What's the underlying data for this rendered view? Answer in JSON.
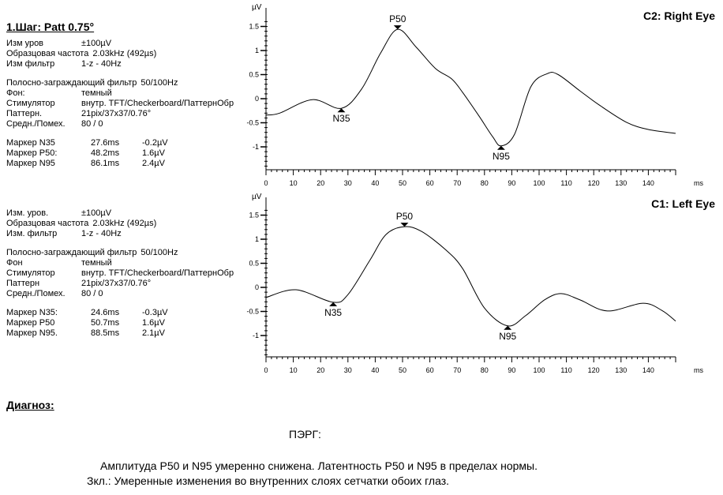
{
  "step_title": "1.Шаг: Patt 0.75°",
  "info_blocks": [
    {
      "params": [
        {
          "label": "Изм уров",
          "value": "±100µV"
        },
        {
          "label": "Образцовая частота",
          "value": "2.03kHz (492µs)"
        },
        {
          "label": "Изм фильтр",
          "value": "1-z - 40Hz"
        }
      ],
      "params2": [
        {
          "label": "Полосно-заграждающий фильтр",
          "value": "50/100Hz"
        },
        {
          "label": "Фон:",
          "value": "темный"
        },
        {
          "label": "Стимулятор",
          "value": "внутр. TFT/Checkerboard/ПаттернОбр"
        },
        {
          "label": "Паттерн.",
          "value": "21pix/37x37/0.76°"
        },
        {
          "label": "Средн./Помех.",
          "value": "80 / 0"
        }
      ],
      "markers": [
        {
          "label": "Маркер N35",
          "ms": "27.6ms",
          "uv": "-0.2µV"
        },
        {
          "label": "Маркер P50:",
          "ms": "48.2ms",
          "uv": "1.6µV"
        },
        {
          "label": "Маркер N95",
          "ms": "86.1ms",
          "uv": "2.4µV"
        }
      ]
    },
    {
      "params": [
        {
          "label": "Изм. уров.",
          "value": "±100µV"
        },
        {
          "label": "Образцовая частота",
          "value": "2.03kHz (492µs)"
        },
        {
          "label": "Изм. фильтр",
          "value": "1-z - 40Hz"
        }
      ],
      "params2": [
        {
          "label": "Полосно-заграждающий фильтр",
          "value": "50/100Hz"
        },
        {
          "label": "Фон",
          "value": "темный"
        },
        {
          "label": "Стимулятор",
          "value": "внутр. TFT/Checkerboard/ПаттернОбр"
        },
        {
          "label": "Паттерн",
          "value": "21pix/37x37/0.76°"
        },
        {
          "label": "Средн./Помех.",
          "value": "80 / 0"
        }
      ],
      "markers": [
        {
          "label": "Маркер N35:",
          "ms": "24.6ms",
          "uv": "-0.3µV"
        },
        {
          "label": "Маркер P50",
          "ms": "50.7ms",
          "uv": "1.6µV"
        },
        {
          "label": "Маркер N95.",
          "ms": "88.5ms",
          "uv": "2.1µV"
        }
      ]
    }
  ],
  "chart_data": [
    {
      "type": "line",
      "title": "C2: Right Eye",
      "xlabel": "ms",
      "ylabel": "µV",
      "xlim": [
        0,
        150
      ],
      "ylim": [
        -1.3,
        1.7
      ],
      "xticks": [
        "0",
        "10",
        "20",
        "30",
        "40",
        "50",
        "60",
        "70",
        "80",
        "90",
        "100",
        "110",
        "120",
        "130",
        "140"
      ],
      "yticks": [
        {
          "v": 1.5,
          "t": "1.5"
        },
        {
          "v": 1,
          "t": "1"
        },
        {
          "v": 0.5,
          "t": "0.5"
        },
        {
          "v": 0,
          "t": "0"
        },
        {
          "v": -0.5,
          "t": "-0.5"
        },
        {
          "v": -1,
          "t": "-1"
        }
      ],
      "series": [
        {
          "name": "Right Eye",
          "x": [
            0,
            5,
            17,
            27.6,
            35,
            42,
            48.2,
            55,
            62,
            68,
            72,
            78,
            83,
            86.1,
            91,
            97,
            103,
            107,
            115,
            122,
            132,
            140,
            150
          ],
          "y": [
            -0.34,
            -0.3,
            -0.02,
            -0.2,
            0.2,
            0.95,
            1.44,
            1.07,
            0.63,
            0.41,
            0.13,
            -0.36,
            -0.79,
            -0.98,
            -0.74,
            0.25,
            0.52,
            0.5,
            0.16,
            -0.13,
            -0.49,
            -0.64,
            -0.72
          ]
        }
      ],
      "markers": [
        {
          "name": "N35",
          "x": 27.6,
          "y": -0.2,
          "dir": "below"
        },
        {
          "name": "P50",
          "x": 48.2,
          "y": 1.44,
          "dir": "above"
        },
        {
          "name": "N95",
          "x": 86.1,
          "y": -0.98,
          "dir": "below"
        }
      ]
    },
    {
      "type": "line",
      "title": "C1: Left Eye",
      "xlabel": "ms",
      "ylabel": "µV",
      "xlim": [
        0,
        150
      ],
      "ylim": [
        -1.3,
        1.7
      ],
      "xticks": [
        "0",
        "10",
        "20",
        "30",
        "40",
        "50",
        "60",
        "70",
        "80",
        "90",
        "100",
        "110",
        "120",
        "130",
        "140"
      ],
      "yticks": [
        {
          "v": 1.5,
          "t": "1.5"
        },
        {
          "v": 1,
          "t": "1"
        },
        {
          "v": 0.5,
          "t": "0.5"
        },
        {
          "v": 0,
          "t": "0"
        },
        {
          "v": -0.5,
          "t": "-0.5"
        },
        {
          "v": -1,
          "t": "-1"
        }
      ],
      "series": [
        {
          "name": "Left Eye",
          "x": [
            0,
            11,
            24.6,
            30,
            38,
            44,
            50.7,
            57,
            66,
            72,
            80,
            88.5,
            95,
            102,
            108,
            115,
            125,
            138,
            145,
            150
          ],
          "y": [
            -0.21,
            -0.05,
            -0.31,
            -0.15,
            0.56,
            1.1,
            1.26,
            1.16,
            0.77,
            0.39,
            -0.43,
            -0.8,
            -0.59,
            -0.26,
            -0.13,
            -0.26,
            -0.49,
            -0.33,
            -0.48,
            -0.7
          ]
        }
      ],
      "markers": [
        {
          "name": "N35",
          "x": 24.6,
          "y": -0.31,
          "dir": "below"
        },
        {
          "name": "P50",
          "x": 50.7,
          "y": 1.26,
          "dir": "above"
        },
        {
          "name": "N95",
          "x": 88.5,
          "y": -0.8,
          "dir": "below"
        }
      ]
    }
  ],
  "diagnosis": {
    "heading": "Диагноз:",
    "method": "ПЭРГ:",
    "line1": "Амплитуда P50 и N95 умеренно снижена. Латентность P50 и N95 в пределах нормы.",
    "line2": "Зкл.: Умеренные изменения во внутренних слоях сетчатки обоих глаз."
  }
}
